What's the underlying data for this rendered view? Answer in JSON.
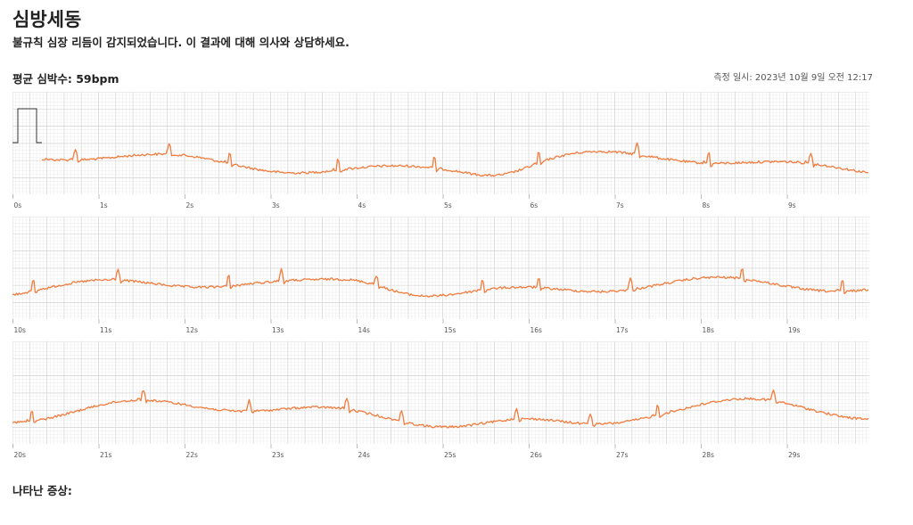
{
  "report": {
    "title": "심방세동",
    "subtitle": "불규칙 심장 리듬이 감지되었습니다. 이 결과에 대해 의사와 상담하세요.",
    "heart_rate": "평균 심박수: 59bpm",
    "measured_at": "측정 일시: 2023년 10월 9일 오전 12:17",
    "symptoms_label": "나타난 증상:"
  },
  "ecg": {
    "color": "#f07c3e",
    "grid_minor_color": "#ececec",
    "grid_major_color": "#d6d6d6",
    "seconds_per_strip": 10,
    "strips": [
      {
        "ticks": [
          "0s",
          "1s",
          "2s",
          "3s",
          "4s",
          "5s",
          "6s",
          "7s",
          "8s",
          "9s"
        ]
      },
      {
        "ticks": [
          "10s",
          "11s",
          "12s",
          "13s",
          "14s",
          "15s",
          "16s",
          "17s",
          "18s",
          "19s"
        ]
      },
      {
        "ticks": [
          "20s",
          "21s",
          "22s",
          "23s",
          "24s",
          "25s",
          "26s",
          "27s",
          "28s",
          "29s"
        ]
      }
    ]
  }
}
